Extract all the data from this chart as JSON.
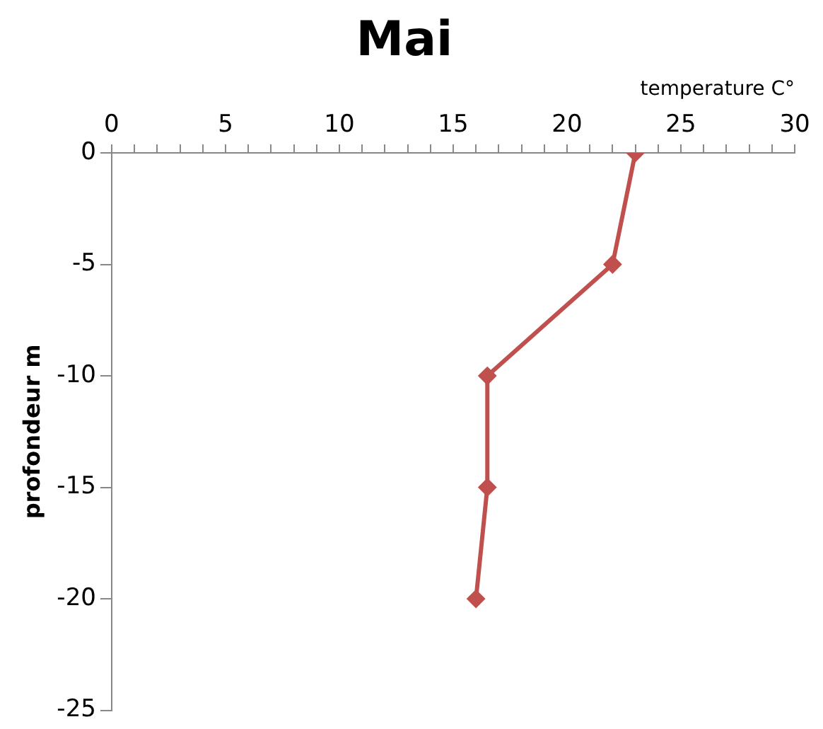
{
  "chart_data": {
    "type": "line",
    "title": "Mai",
    "xlabel": "temperature C°",
    "ylabel": "profondeur m",
    "x": [
      23,
      22,
      16.5,
      16.5,
      16
    ],
    "series": [
      {
        "color": "#c0504d",
        "values": [
          0,
          -5,
          -10,
          -15,
          -20
        ]
      }
    ],
    "xlim": [
      0,
      30
    ],
    "xticks": [
      0,
      {
        "value": 1,
        "label": null
      },
      {
        "value": 2,
        "label": null
      },
      {
        "value": 3,
        "label": null
      },
      {
        "value": 4,
        "label": null
      },
      5,
      {
        "value": 6,
        "label": null
      },
      {
        "value": 7,
        "label": null
      },
      {
        "value": 8,
        "label": null
      },
      {
        "value": 9,
        "label": null
      },
      10,
      {
        "value": 11,
        "label": null
      },
      {
        "value": 12,
        "label": null
      },
      {
        "value": 13,
        "label": null
      },
      {
        "value": 14,
        "label": null
      },
      15,
      {
        "value": 16,
        "label": null
      },
      {
        "value": 17,
        "label": null
      },
      {
        "value": 18,
        "label": null
      },
      {
        "value": 19,
        "label": null
      },
      20,
      {
        "value": 21,
        "label": null
      },
      {
        "value": 22,
        "label": null
      },
      {
        "value": 23,
        "label": null
      },
      {
        "value": 24,
        "label": null
      },
      25,
      {
        "value": 26,
        "label": null
      },
      {
        "value": 27,
        "label": null
      },
      {
        "value": 28,
        "label": null
      },
      {
        "value": 29,
        "label": null
      },
      30
    ],
    "ylim": [
      -25,
      0
    ],
    "yticks": [
      0,
      -5,
      -10,
      -15,
      -20,
      -25
    ],
    "grid": false,
    "legend": false,
    "marker": "diamond",
    "line_style": "solid"
  }
}
